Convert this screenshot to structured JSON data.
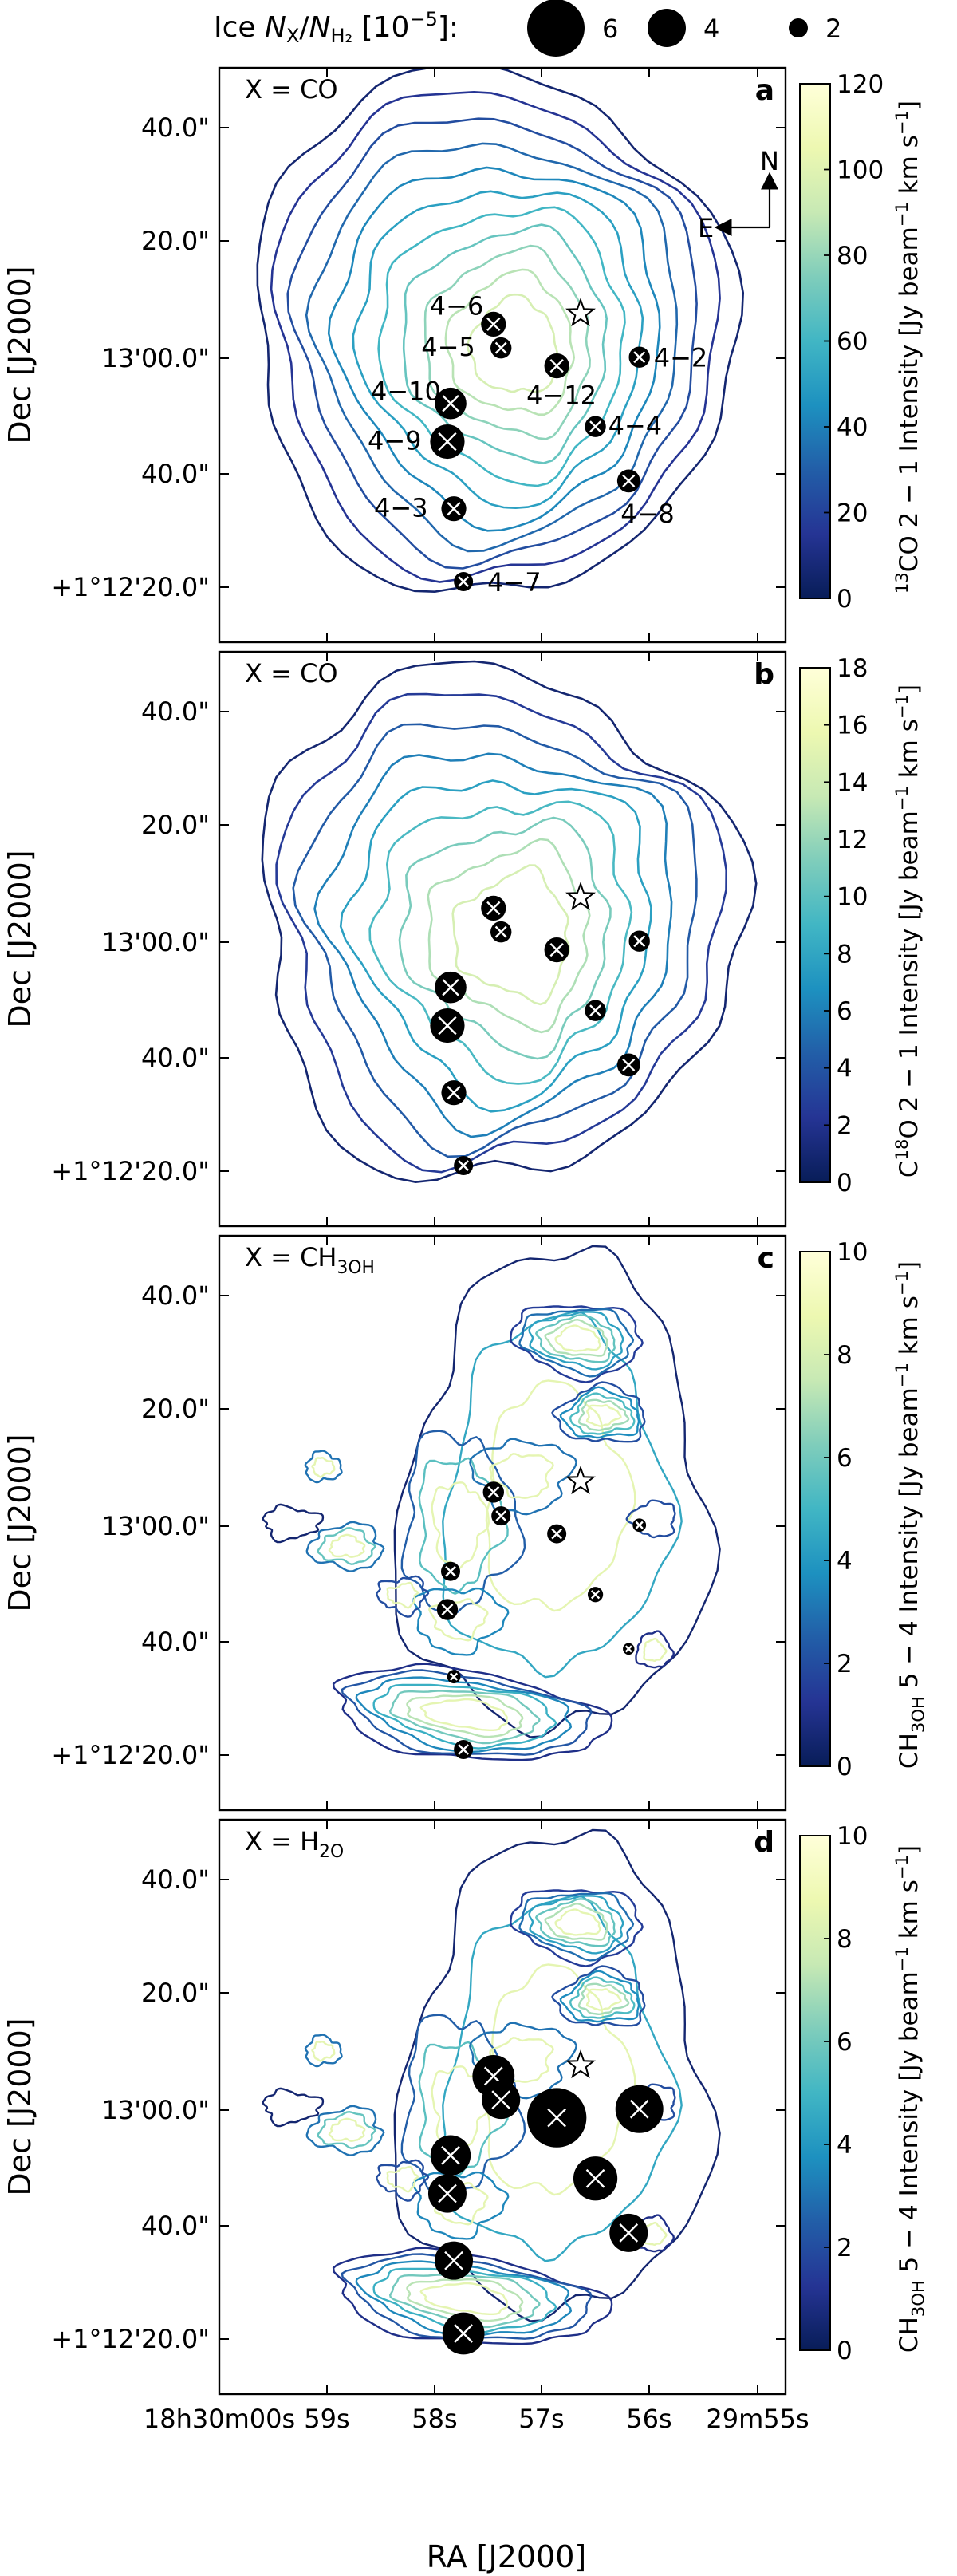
{
  "legend": {
    "label": "Ice N_X/N_H2 [10^-5]:",
    "entries": [
      {
        "value": 6,
        "label": "6"
      },
      {
        "value": 4,
        "label": "4"
      },
      {
        "value": 2,
        "label": "2"
      }
    ]
  },
  "axes": {
    "ylabel": "Dec [J2000]",
    "xlabel": "RA [J2000]",
    "yticks": [
      "40.0\"",
      "20.0\"",
      "13'00.0\"",
      "40.0\"",
      "+1°12'20.0\""
    ],
    "xticks": [
      "18h30m00s",
      "59s",
      "58s",
      "57s",
      "56s",
      "29m55s"
    ]
  },
  "compass": {
    "north": "N",
    "east": "E"
  },
  "colors": {
    "colormap": [
      "#081d58",
      "#253494",
      "#225ea8",
      "#1d91c0",
      "#41b6c4",
      "#7fcdbb",
      "#c7e9b4",
      "#edf8b1",
      "#ffffd9"
    ]
  },
  "chart_data": [
    {
      "type": "contour",
      "panel": "a",
      "label": "X = CO",
      "colorbar": {
        "label": "13CO 2 − 1 Intensity [Jy beam−1 km s−1]",
        "ticks": [
          0,
          20,
          40,
          60,
          80,
          100,
          120
        ],
        "range": [
          0,
          120
        ]
      },
      "source_labels": [
        "4−6",
        "4−5",
        "4−2",
        "4−10",
        "4−12",
        "4−4",
        "4−9",
        "4−8",
        "4−3",
        "4−7"
      ],
      "sources": [
        {
          "id": "4-6",
          "ra": 57.89,
          "dec": 65.6,
          "abundance": 2.6
        },
        {
          "id": "4-5",
          "ra": 57.82,
          "dec": 61.5,
          "abundance": 2.2
        },
        {
          "id": "4-2",
          "ra": 56.53,
          "dec": 59.9,
          "abundance": 2.2
        },
        {
          "id": "4-12",
          "ra": 57.3,
          "dec": 58.4,
          "abundance": 2.6
        },
        {
          "id": "4-10",
          "ra": 58.29,
          "dec": 51.9,
          "abundance": 3.3
        },
        {
          "id": "4-4",
          "ra": 56.94,
          "dec": 47.9,
          "abundance": 2.2
        },
        {
          "id": "4-9",
          "ra": 58.32,
          "dec": 45.3,
          "abundance": 3.6
        },
        {
          "id": "4-3",
          "ra": 56.63,
          "dec": 38.5,
          "abundance": 2.4
        },
        {
          "id": "4-8",
          "ra": 58.26,
          "dec": 33.7,
          "abundance": 2.6
        },
        {
          "id": "4-7",
          "ra": 58.17,
          "dec": 21.1,
          "abundance": 2.0
        }
      ]
    },
    {
      "type": "contour",
      "panel": "b",
      "label": "X = CO",
      "colorbar": {
        "label": "C18O 2 − 1 Intensity [Jy beam−1 km s−1]",
        "ticks": [
          0,
          2,
          4,
          6,
          8,
          10,
          12,
          14,
          16,
          18
        ],
        "range": [
          0,
          18
        ]
      },
      "sources": [
        {
          "id": "4-6",
          "abundance": 2.6
        },
        {
          "id": "4-5",
          "abundance": 2.2
        },
        {
          "id": "4-2",
          "abundance": 2.2
        },
        {
          "id": "4-12",
          "abundance": 2.6
        },
        {
          "id": "4-10",
          "abundance": 3.3
        },
        {
          "id": "4-4",
          "abundance": 2.2
        },
        {
          "id": "4-9",
          "abundance": 3.6
        },
        {
          "id": "4-3",
          "abundance": 2.4
        },
        {
          "id": "4-8",
          "abundance": 2.6
        },
        {
          "id": "4-7",
          "abundance": 2.0
        }
      ]
    },
    {
      "type": "contour",
      "panel": "c",
      "label": "X = CH3OH",
      "colorbar": {
        "label": "CH3OH 5 − 4 Intensity [Jy beam−1 km s−1]",
        "ticks": [
          0,
          2,
          4,
          6,
          8,
          10
        ],
        "range": [
          0,
          10
        ]
      },
      "sources": [
        {
          "id": "4-6",
          "abundance": 2.2
        },
        {
          "id": "4-5",
          "abundance": 2.0
        },
        {
          "id": "4-2",
          "abundance": 1.4
        },
        {
          "id": "4-12",
          "abundance": 2.0
        },
        {
          "id": "4-10",
          "abundance": 2.0
        },
        {
          "id": "4-4",
          "abundance": 1.6
        },
        {
          "id": "4-9",
          "abundance": 2.2
        },
        {
          "id": "4-3",
          "abundance": 1.2
        },
        {
          "id": "4-8",
          "abundance": 1.4
        },
        {
          "id": "4-7",
          "abundance": 2.0
        }
      ]
    },
    {
      "type": "contour",
      "panel": "d",
      "label": "X = H2O",
      "colorbar": {
        "label": "CH3OH 5 − 4 Intensity [Jy beam−1 km s−1]",
        "ticks": [
          0,
          2,
          4,
          6,
          8,
          10
        ],
        "range": [
          0,
          10
        ]
      },
      "sources": [
        {
          "id": "4-6",
          "abundance": 4.4
        },
        {
          "id": "4-5",
          "abundance": 4.0
        },
        {
          "id": "4-2",
          "abundance": 5.0
        },
        {
          "id": "4-12",
          "abundance": 6.2
        },
        {
          "id": "4-10",
          "abundance": 4.2
        },
        {
          "id": "4-4",
          "abundance": 4.6
        },
        {
          "id": "4-9",
          "abundance": 4.0
        },
        {
          "id": "4-3",
          "abundance": 4.0
        },
        {
          "id": "4-8",
          "abundance": 4.0
        },
        {
          "id": "4-7",
          "abundance": 4.4
        }
      ]
    }
  ]
}
